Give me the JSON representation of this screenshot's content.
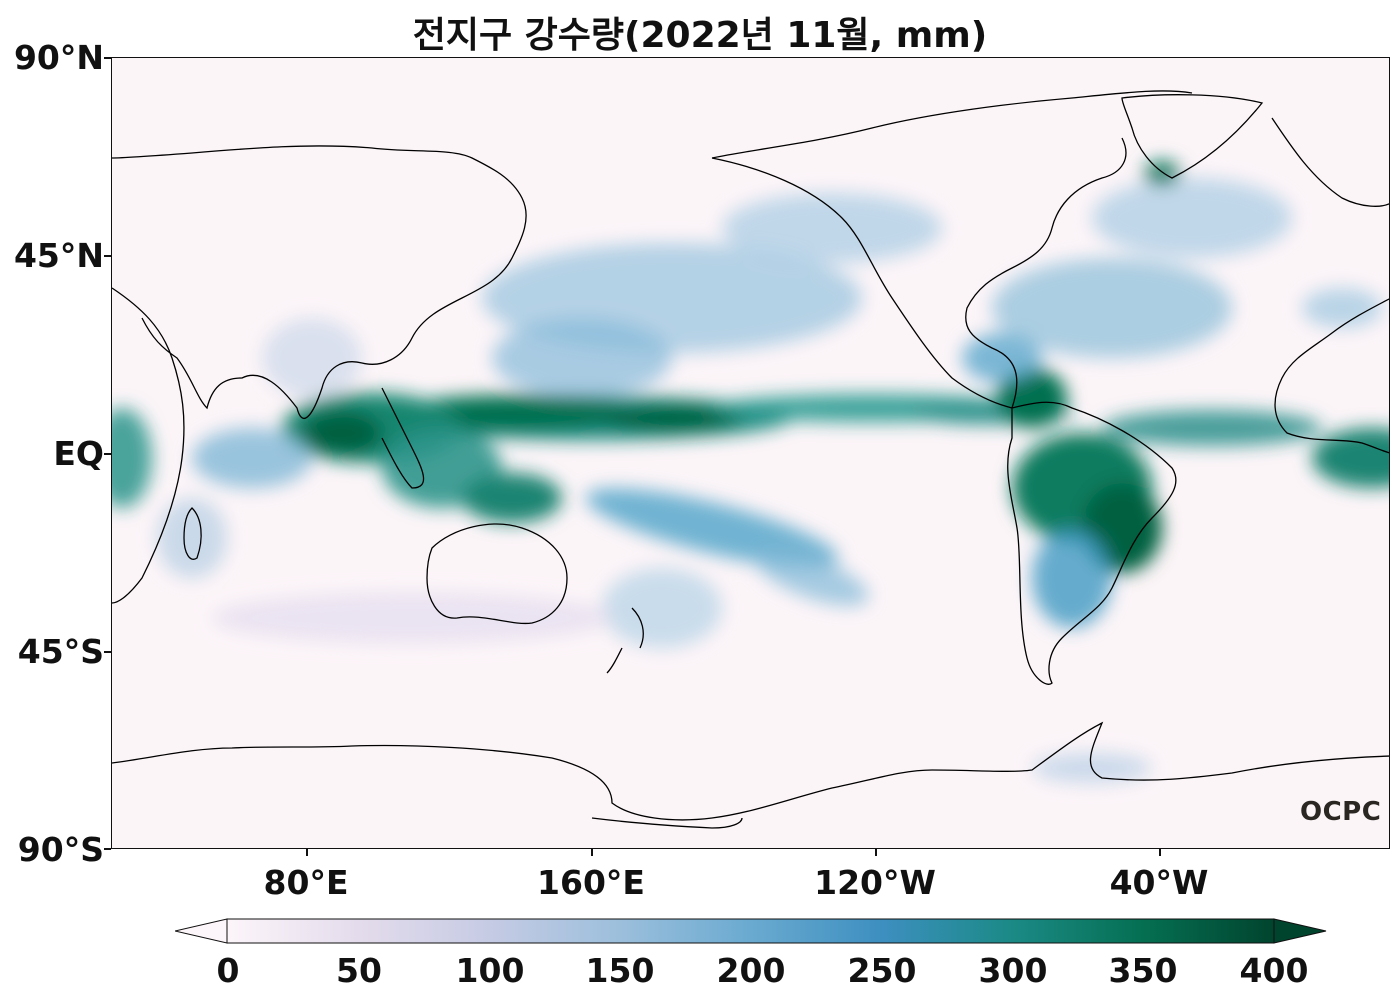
{
  "title": "전지구 강수량(2022년 11월, mm)",
  "latitude_labels": [
    "90°N",
    "45°N",
    "EQ",
    "45°S",
    "90°S"
  ],
  "longitude_labels": [
    "80°E",
    "160°E",
    "120°W",
    "40°W"
  ],
  "colorbar": {
    "ticks": [
      "0",
      "50",
      "100",
      "150",
      "200",
      "250",
      "300",
      "350",
      "400"
    ],
    "colors": [
      "#fcf5f9",
      "#e4dcec",
      "#c6cbe4",
      "#9cbfdc",
      "#6aaad0",
      "#3d8fc0",
      "#1b8a86",
      "#056f52",
      "#01442e"
    ]
  },
  "watermark": "OCPC",
  "colors": {
    "background": "#fcf5f8",
    "coastline": "#000000"
  }
}
